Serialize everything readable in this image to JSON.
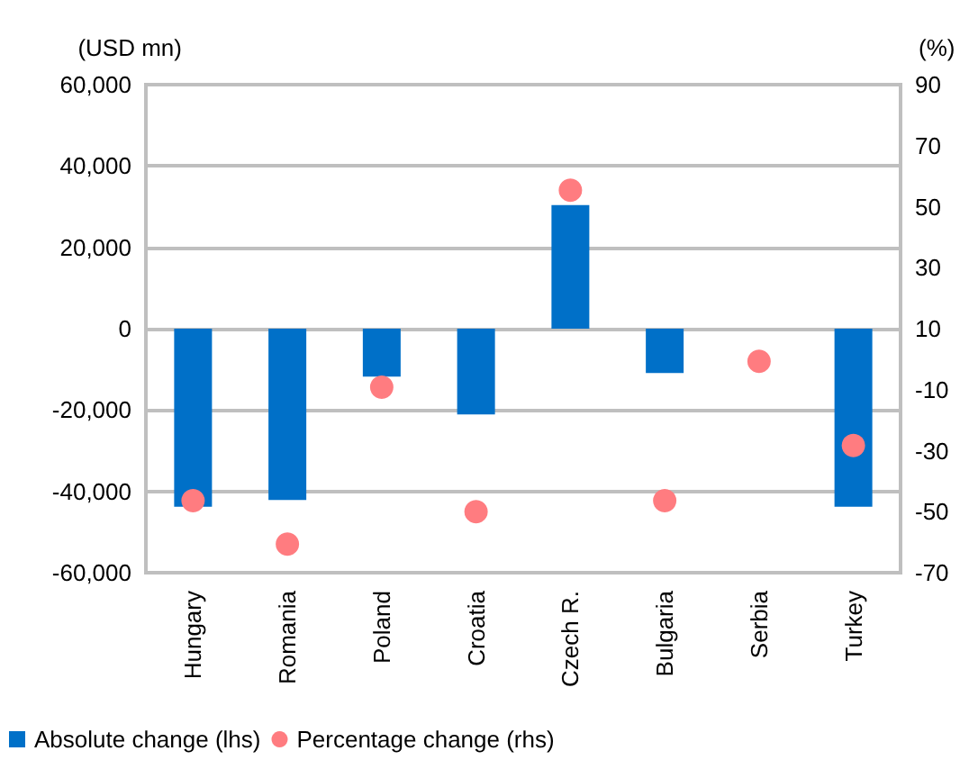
{
  "chart_data": {
    "type": "bar",
    "ylabel": "(USD mn)",
    "y2label": "(%)",
    "categories": [
      "Hungary",
      "Romania",
      "Poland",
      "Croatia",
      "Czech R.",
      "Bulgaria",
      "Serbia",
      "Turkey"
    ],
    "series": [
      {
        "name": "Absolute change (lhs)",
        "type": "bar",
        "color": "#0070c8",
        "values": [
          -43800,
          -42100,
          -11800,
          -21100,
          30400,
          -10900,
          0,
          -43800
        ]
      },
      {
        "name": "Percentage change (rhs)",
        "type": "scatter",
        "axis": "y2",
        "color": "#ff7c80",
        "marker": "circle",
        "values": [
          -46.4,
          -60.6,
          -9.2,
          -50,
          55.4,
          -46.4,
          -0.7,
          -28.3
        ]
      }
    ],
    "ylim": [
      -60000,
      60000
    ],
    "yticks": [
      {
        "value": -60000,
        "label": "-60,000"
      },
      {
        "value": -40000,
        "label": "-40,000"
      },
      {
        "value": -20000,
        "label": "-20,000"
      },
      0,
      {
        "value": 20000,
        "label": "20,000"
      },
      {
        "value": 40000,
        "label": "40,000"
      },
      {
        "value": 60000,
        "label": "60,000"
      }
    ],
    "y2lim": [
      -70,
      90
    ],
    "y2ticks": [
      -70,
      -50,
      -30,
      -10,
      10,
      30,
      50,
      70,
      90
    ],
    "grid": "y",
    "legend": "bottom"
  }
}
